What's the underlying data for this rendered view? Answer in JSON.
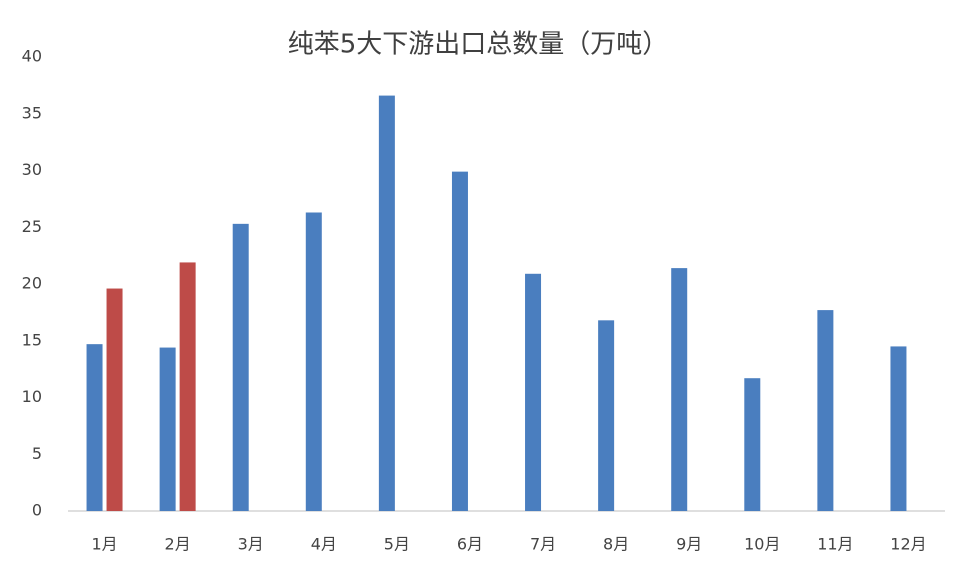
{
  "chart_data": {
    "type": "bar",
    "title": "纯苯5大下游出口总数量（万吨）",
    "categories": [
      "1月",
      "2月",
      "3月",
      "4月",
      "5月",
      "6月",
      "7月",
      "8月",
      "9月",
      "10月",
      "11月",
      "12月"
    ],
    "series": [
      {
        "color": "#4a7ebf",
        "values": [
          14.7,
          14.4,
          25.3,
          26.3,
          36.6,
          29.9,
          20.9,
          16.8,
          21.4,
          11.7,
          17.7,
          14.5
        ]
      },
      {
        "color": "#be4b48",
        "values": [
          19.6,
          21.9,
          null,
          null,
          null,
          null,
          null,
          null,
          null,
          null,
          null,
          null
        ]
      }
    ],
    "ylim": [
      0,
      40
    ],
    "yticks": [
      0,
      5,
      10,
      15,
      20,
      25,
      30,
      35,
      40
    ],
    "grid": false
  }
}
